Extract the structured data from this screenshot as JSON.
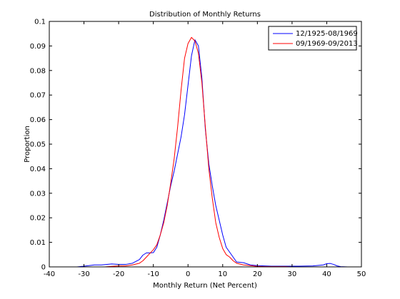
{
  "chart_data": {
    "type": "line",
    "title": "Distribution of Monthly Returns",
    "xlabel": "Monthly Return (Net Percent)",
    "ylabel": "Proportion",
    "xlim": [
      -40,
      50
    ],
    "ylim": [
      0,
      0.1
    ],
    "xticks": [
      -40,
      -30,
      -20,
      -10,
      0,
      10,
      20,
      30,
      40,
      50
    ],
    "xtick_labels": [
      "-40",
      "-30",
      "-20",
      "-10",
      "0",
      "10",
      "20",
      "30",
      "40",
      "50"
    ],
    "yticks": [
      0,
      0.01,
      0.02,
      0.03,
      0.04,
      0.05,
      0.06,
      0.07,
      0.08,
      0.09,
      0.1
    ],
    "ytick_labels": [
      "0",
      "0.01",
      "0.02",
      "0.03",
      "0.04",
      "0.05",
      "0.06",
      "0.07",
      "0.08",
      "0.09",
      "0.1"
    ],
    "grid": false,
    "legend_position": "top-right",
    "series": [
      {
        "name": "12/1925-08/1969",
        "color": "#0000ff",
        "x": [
          -32,
          -30,
          -27,
          -25,
          -22,
          -20,
          -18,
          -16,
          -14,
          -13,
          -12,
          -11,
          -10,
          -9,
          -8,
          -7,
          -6,
          -5,
          -4,
          -3,
          -2,
          -1,
          0,
          1,
          2,
          3,
          4,
          5,
          6,
          7,
          8,
          9,
          10,
          11,
          12,
          13,
          14,
          16,
          18,
          20,
          24,
          28,
          32,
          36,
          39,
          40,
          41,
          42,
          43,
          44,
          46
        ],
        "values": [
          0,
          0.0003,
          0.0008,
          0.0008,
          0.0012,
          0.001,
          0.001,
          0.0015,
          0.003,
          0.0048,
          0.0057,
          0.0057,
          0.0058,
          0.008,
          0.013,
          0.019,
          0.026,
          0.033,
          0.039,
          0.046,
          0.053,
          0.062,
          0.074,
          0.086,
          0.0925,
          0.09,
          0.077,
          0.056,
          0.042,
          0.033,
          0.025,
          0.019,
          0.013,
          0.008,
          0.006,
          0.004,
          0.002,
          0.0017,
          0.0008,
          0.0005,
          0.0003,
          0.0003,
          0.0003,
          0.0004,
          0.0008,
          0.0013,
          0.0014,
          0.001,
          0.0004,
          0.0001,
          0
        ]
      },
      {
        "name": "09/1969-09/2013",
        "color": "#ff0000",
        "x": [
          -24,
          -22,
          -20,
          -18,
          -16,
          -14,
          -13,
          -12,
          -11,
          -10,
          -9,
          -8,
          -7,
          -6,
          -5,
          -4,
          -3,
          -2,
          -1,
          0,
          1,
          2,
          3,
          4,
          5,
          6,
          7,
          8,
          9,
          10,
          11,
          12,
          13,
          14,
          16,
          18,
          20,
          22,
          24,
          26,
          28,
          30,
          32
        ],
        "values": [
          0,
          0.0002,
          0.0004,
          0.0004,
          0.0008,
          0.0015,
          0.0025,
          0.004,
          0.0055,
          0.007,
          0.009,
          0.013,
          0.018,
          0.025,
          0.034,
          0.044,
          0.057,
          0.072,
          0.085,
          0.091,
          0.0935,
          0.092,
          0.087,
          0.075,
          0.057,
          0.04,
          0.028,
          0.018,
          0.012,
          0.0075,
          0.005,
          0.004,
          0.0025,
          0.0015,
          0.0008,
          0.0005,
          0.0002,
          0.0001,
          0.0001,
          0.0001,
          0.0001,
          0,
          0
        ]
      }
    ]
  }
}
